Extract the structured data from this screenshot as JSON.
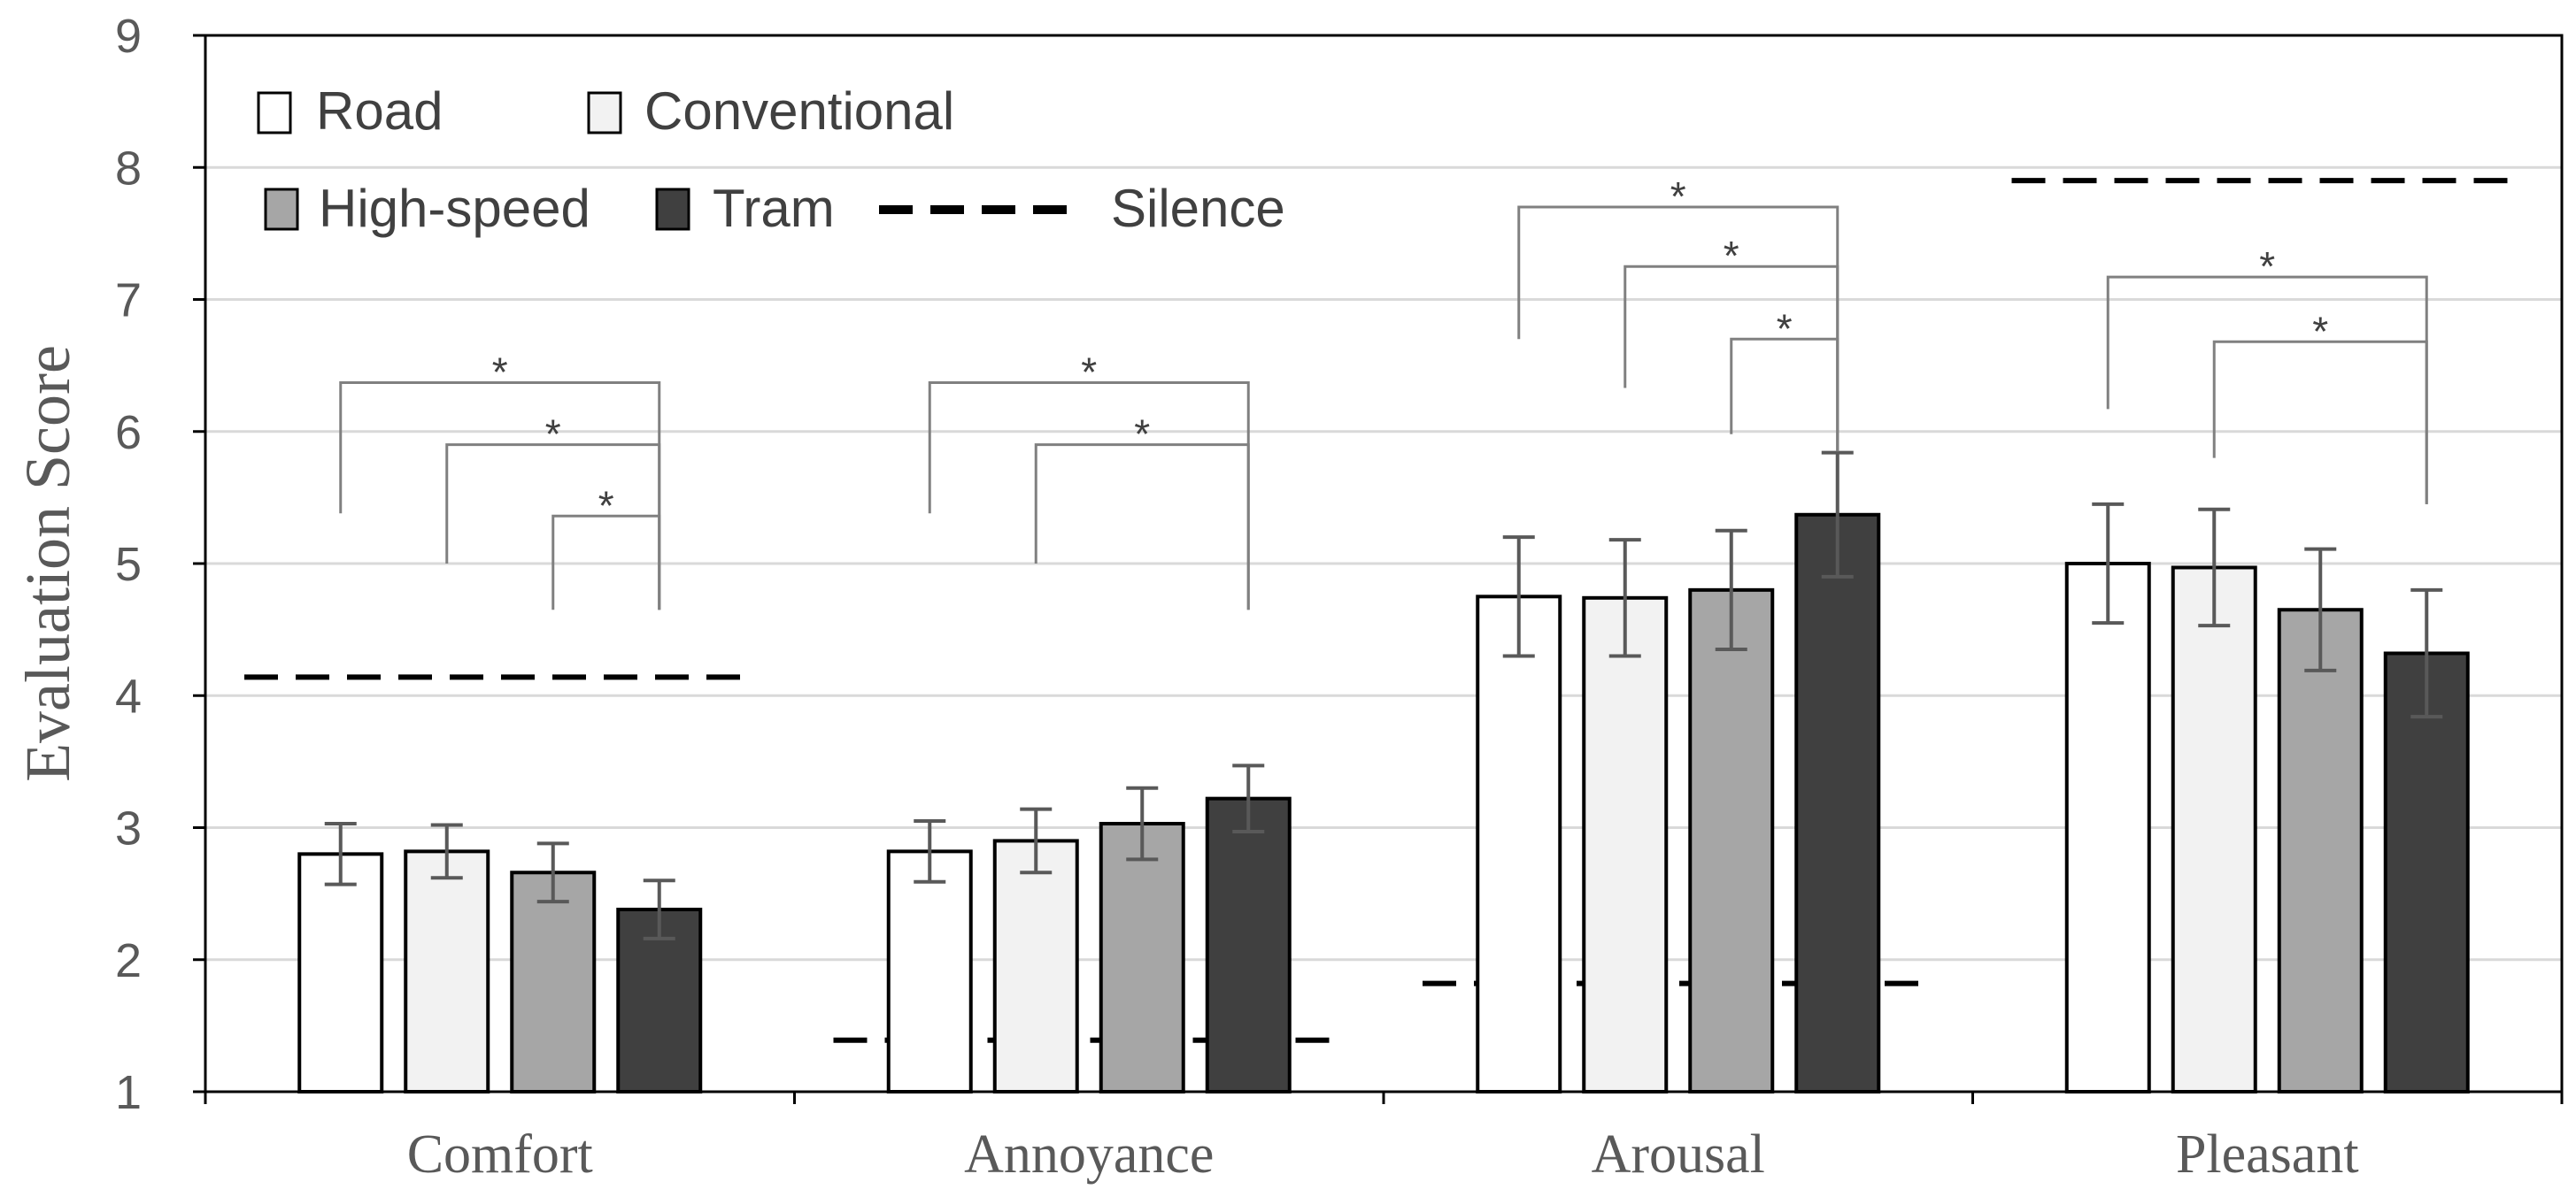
{
  "chart_data": {
    "type": "bar",
    "title": "",
    "xlabel": "",
    "ylabel": "Evaluation Score",
    "ylim": [
      1,
      9
    ],
    "yticks": [
      "1",
      "2",
      "3",
      "4",
      "5",
      "6",
      "7",
      "8",
      "9"
    ],
    "grid": true,
    "legend_position": "top-left",
    "categories": [
      "Comfort",
      "Annoyance",
      "Arousal",
      "Pleasant"
    ],
    "series": [
      {
        "name": "Road",
        "color": "#ffffff",
        "values": [
          2.8,
          2.82,
          4.75,
          5.0
        ],
        "errors": [
          0.23,
          0.23,
          0.45,
          0.45
        ]
      },
      {
        "name": "Conventional",
        "color": "#f2f2f2",
        "values": [
          2.82,
          2.9,
          4.74,
          4.97
        ],
        "errors": [
          0.2,
          0.24,
          0.44,
          0.44
        ]
      },
      {
        "name": "High-speed",
        "color": "#a6a6a6",
        "values": [
          2.66,
          3.03,
          4.8,
          4.65
        ],
        "errors": [
          0.22,
          0.27,
          0.45,
          0.46
        ]
      },
      {
        "name": "Tram",
        "color": "#404040",
        "values": [
          2.38,
          3.22,
          5.37,
          4.32
        ],
        "errors": [
          0.22,
          0.25,
          0.47,
          0.48
        ]
      }
    ],
    "silence": {
      "name": "Silence",
      "values": [
        4.14,
        1.39,
        1.82,
        7.9
      ]
    },
    "significance": [
      {
        "category": 0,
        "from": 0,
        "to": 3,
        "top": 6.37,
        "start_y": 5.38,
        "end_y": 4.65,
        "label": "*"
      },
      {
        "category": 0,
        "from": 1,
        "to": 3,
        "top": 5.9,
        "start_y": 5.0,
        "end_y": 4.65,
        "label": "*"
      },
      {
        "category": 0,
        "from": 2,
        "to": 3,
        "top": 5.36,
        "start_y": 4.65,
        "end_y": 4.65,
        "label": "*"
      },
      {
        "category": 1,
        "from": 0,
        "to": 3,
        "top": 6.37,
        "start_y": 5.38,
        "end_y": 4.65,
        "label": "*"
      },
      {
        "category": 1,
        "from": 1,
        "to": 3,
        "top": 5.9,
        "start_y": 5.0,
        "end_y": 4.65,
        "label": "*"
      },
      {
        "category": 2,
        "from": 0,
        "to": 3,
        "top": 7.7,
        "start_y": 6.7,
        "end_y": 5.85,
        "label": "*"
      },
      {
        "category": 2,
        "from": 1,
        "to": 3,
        "top": 7.25,
        "start_y": 6.33,
        "end_y": 5.85,
        "label": "*"
      },
      {
        "category": 2,
        "from": 2,
        "to": 3,
        "top": 6.7,
        "start_y": 5.98,
        "end_y": 5.85,
        "label": "*"
      },
      {
        "category": 3,
        "from": 0,
        "to": 3,
        "top": 7.17,
        "start_y": 6.17,
        "end_y": 5.45,
        "label": "*"
      },
      {
        "category": 3,
        "from": 1,
        "to": 3,
        "top": 6.68,
        "start_y": 5.8,
        "end_y": 5.45,
        "label": "*"
      }
    ]
  }
}
